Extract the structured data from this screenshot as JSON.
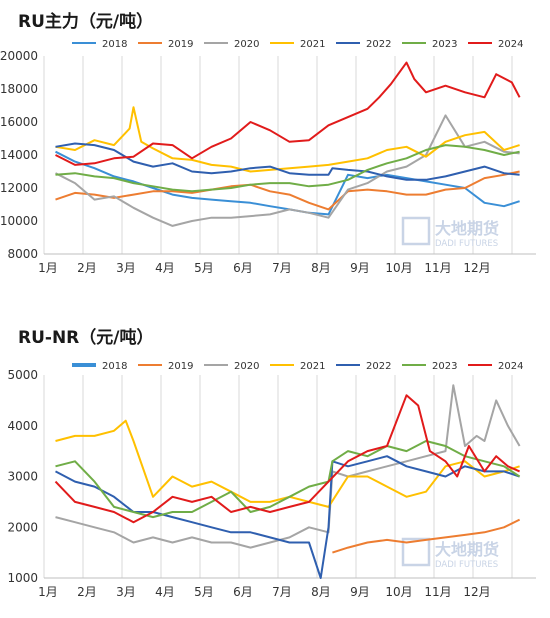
{
  "chart_data": [
    {
      "type": "line",
      "title": "RU主力（元/吨）",
      "ylim": [
        8000,
        20000
      ],
      "yticks": [
        "8000",
        "10000",
        "12000",
        "14000",
        "16000",
        "18000",
        "20000"
      ],
      "xtick_labels": [
        "1月",
        "2月",
        "3月",
        "4月",
        "5月",
        "6月",
        "7月",
        "8月",
        "9月",
        "10月",
        "11月",
        "12月"
      ],
      "legend_position": "top",
      "grid": "vertical",
      "series": [
        {
          "name": "2018",
          "color": "#3a8fd6",
          "x": [
            1,
            1.5,
            2,
            2.5,
            3,
            3.5,
            4,
            4.5,
            5,
            5.5,
            6,
            6.5,
            7,
            7.5,
            8,
            8.5,
            9,
            9.5,
            10,
            10.5,
            11,
            11.5,
            12,
            12.5,
            12.9
          ],
          "y": [
            14200,
            13600,
            13200,
            12700,
            12400,
            12000,
            11600,
            11400,
            11300,
            11200,
            11100,
            10900,
            10700,
            10500,
            10400,
            12800,
            12600,
            12800,
            12600,
            12400,
            12200,
            12000,
            11100,
            10900,
            11200
          ]
        },
        {
          "name": "2019",
          "color": "#ed7d31",
          "x": [
            1,
            1.5,
            2,
            2.5,
            3,
            3.5,
            4,
            4.5,
            5,
            5.5,
            6,
            6.5,
            7,
            7.5,
            8,
            8.5,
            9,
            9.5,
            10,
            10.5,
            11,
            11.5,
            12,
            12.5,
            12.9
          ],
          "y": [
            11300,
            11700,
            11600,
            11400,
            11600,
            11800,
            11800,
            11700,
            11900,
            12100,
            12200,
            11800,
            11600,
            11100,
            10700,
            11800,
            11900,
            11800,
            11600,
            11600,
            11900,
            12000,
            12600,
            12800,
            13000
          ]
        },
        {
          "name": "2020",
          "color": "#a5a5a5",
          "x": [
            1,
            1.5,
            2,
            2.5,
            3,
            3.5,
            4,
            4.5,
            5,
            5.5,
            6,
            6.5,
            7,
            7.5,
            8,
            8.5,
            9,
            9.5,
            10,
            10.5,
            11,
            11.5,
            12,
            12.5,
            12.9
          ],
          "y": [
            12900,
            12300,
            11300,
            11500,
            10800,
            10200,
            9700,
            10000,
            10200,
            10200,
            10300,
            10400,
            10700,
            10500,
            10200,
            11900,
            12300,
            13000,
            13300,
            14000,
            16400,
            14500,
            14800,
            14200,
            14100
          ]
        },
        {
          "name": "2021",
          "color": "#ffc000",
          "x": [
            1,
            1.5,
            2,
            2.5,
            2.9,
            3,
            3.2,
            3.5,
            4,
            4.5,
            5,
            5.5,
            6,
            6.5,
            7,
            7.5,
            8,
            8.5,
            9,
            9.5,
            10,
            10.5,
            11,
            11.5,
            12,
            12.5,
            12.9
          ],
          "y": [
            14500,
            14300,
            14900,
            14600,
            15600,
            16900,
            14800,
            14400,
            13800,
            13700,
            13400,
            13300,
            13000,
            13100,
            13200,
            13300,
            13400,
            13600,
            13800,
            14300,
            14500,
            13900,
            14800,
            15200,
            15400,
            14300,
            14600
          ]
        },
        {
          "name": "2022",
          "color": "#2f5faf",
          "x": [
            1,
            1.5,
            2,
            2.5,
            3,
            3.5,
            4,
            4.5,
            5,
            5.5,
            6,
            6.5,
            7,
            7.5,
            8,
            8.1,
            8.5,
            9,
            9.5,
            10,
            10.5,
            11,
            11.5,
            12,
            12.5,
            12.9
          ],
          "y": [
            14500,
            14700,
            14600,
            14300,
            13600,
            13300,
            13500,
            13000,
            12900,
            13000,
            13200,
            13300,
            12900,
            12800,
            12800,
            13200,
            13100,
            13000,
            12700,
            12500,
            12500,
            12700,
            13000,
            13300,
            12900,
            12800
          ]
        },
        {
          "name": "2023",
          "color": "#70ad47",
          "x": [
            1,
            1.5,
            2,
            2.5,
            3,
            3.5,
            4,
            4.5,
            5,
            5.5,
            6,
            6.5,
            7,
            7.5,
            8,
            8.5,
            9,
            9.5,
            10,
            10.5,
            11,
            11.5,
            12,
            12.5,
            12.9
          ],
          "y": [
            12800,
            12900,
            12700,
            12600,
            12300,
            12100,
            11900,
            11800,
            11900,
            12000,
            12200,
            12300,
            12300,
            12100,
            12200,
            12500,
            13100,
            13500,
            13800,
            14300,
            14600,
            14500,
            14300,
            14000,
            14200
          ]
        },
        {
          "name": "2024",
          "color": "#e11b1b",
          "x": [
            1,
            1.5,
            2,
            2.5,
            3,
            3.5,
            4,
            4.5,
            5,
            5.5,
            6,
            6.5,
            7,
            7.5,
            8,
            8.5,
            9,
            9.3,
            9.6,
            10,
            10.2,
            10.5,
            11,
            11.5,
            12,
            12.3,
            12.7,
            12.9
          ],
          "y": [
            14000,
            13400,
            13500,
            13800,
            13900,
            14700,
            14600,
            13800,
            14500,
            15000,
            16000,
            15500,
            14800,
            14900,
            15800,
            16300,
            16800,
            17500,
            18300,
            19600,
            18600,
            17800,
            18200,
            17800,
            17500,
            18900,
            18400,
            17500
          ]
        }
      ]
    },
    {
      "type": "line",
      "title": "RU-NR（元/吨）",
      "ylim": [
        1000,
        5000
      ],
      "yticks": [
        "1000",
        "2000",
        "3000",
        "4000",
        "5000"
      ],
      "xtick_labels": [
        "1月",
        "2月",
        "3月",
        "4月",
        "5月",
        "6月",
        "7月",
        "8月",
        "9月",
        "10月",
        "11月",
        "12月"
      ],
      "legend_position": "top",
      "grid": "vertical",
      "series": [
        {
          "name": "2018",
          "color": "#3a8fd6",
          "x": [],
          "y": []
        },
        {
          "name": "2019",
          "color": "#ed7d31",
          "x": [
            8.1,
            8.5,
            9,
            9.5,
            10,
            10.5,
            11,
            11.5,
            12,
            12.5,
            12.9
          ],
          "y": [
            1500,
            1600,
            1700,
            1750,
            1700,
            1750,
            1800,
            1850,
            1900,
            2000,
            2150
          ]
        },
        {
          "name": "2020",
          "color": "#a5a5a5",
          "x": [
            1,
            1.5,
            2,
            2.5,
            3,
            3.5,
            4,
            4.5,
            5,
            5.5,
            6,
            6.5,
            7,
            7.5,
            8,
            8.1,
            8.5,
            9,
            9.5,
            10,
            10.5,
            11,
            11.2,
            11.5,
            11.8,
            12,
            12.3,
            12.6,
            12.9
          ],
          "y": [
            2200,
            2100,
            2000,
            1900,
            1700,
            1800,
            1700,
            1800,
            1700,
            1700,
            1600,
            1700,
            1800,
            2000,
            1900,
            3100,
            3000,
            3100,
            3200,
            3300,
            3400,
            3500,
            4800,
            3600,
            3800,
            3700,
            4500,
            4000,
            3600
          ]
        },
        {
          "name": "2021",
          "color": "#ffc000",
          "x": [
            1,
            1.5,
            2,
            2.5,
            2.8,
            3,
            3.5,
            4,
            4.5,
            5,
            5.5,
            6,
            6.5,
            7,
            7.5,
            8,
            8.5,
            9,
            9.5,
            10,
            10.5,
            11,
            11.5,
            12,
            12.5,
            12.9
          ],
          "y": [
            3700,
            3800,
            3800,
            3900,
            4100,
            3700,
            2600,
            3000,
            2800,
            2900,
            2700,
            2500,
            2500,
            2600,
            2500,
            2400,
            3000,
            3000,
            2800,
            2600,
            2700,
            3200,
            3300,
            3000,
            3100,
            3200
          ]
        },
        {
          "name": "2022",
          "color": "#2f5faf",
          "x": [
            1,
            1.5,
            2,
            2.5,
            3,
            3.5,
            4,
            4.5,
            5,
            5.5,
            6,
            6.5,
            7,
            7.5,
            7.8,
            8,
            8.1,
            8.5,
            9,
            9.5,
            10,
            10.5,
            11,
            11.5,
            12,
            12.5,
            12.9
          ],
          "y": [
            3100,
            2900,
            2800,
            2600,
            2300,
            2300,
            2200,
            2100,
            2000,
            1900,
            1900,
            1800,
            1700,
            1700,
            1000,
            2000,
            3300,
            3200,
            3300,
            3400,
            3200,
            3100,
            3000,
            3200,
            3100,
            3100,
            3000
          ]
        },
        {
          "name": "2023",
          "color": "#70ad47",
          "x": [
            1,
            1.5,
            2,
            2.5,
            3,
            3.5,
            4,
            4.5,
            5,
            5.5,
            6,
            6.5,
            7,
            7.5,
            8,
            8.1,
            8.5,
            9,
            9.5,
            10,
            10.5,
            11,
            11.5,
            12,
            12.5,
            12.9
          ],
          "y": [
            3200,
            3300,
            2900,
            2400,
            2300,
            2200,
            2300,
            2300,
            2500,
            2700,
            2300,
            2400,
            2600,
            2800,
            2900,
            3300,
            3500,
            3400,
            3600,
            3500,
            3700,
            3600,
            3400,
            3300,
            3200,
            3000
          ]
        },
        {
          "name": "2024",
          "color": "#e11b1b",
          "x": [
            1,
            1.5,
            2,
            2.5,
            3,
            3.5,
            4,
            4.5,
            5,
            5.5,
            6,
            6.5,
            7,
            7.5,
            8,
            8.5,
            9,
            9.5,
            10,
            10.3,
            10.6,
            11,
            11.3,
            11.6,
            12,
            12.3,
            12.6,
            12.9
          ],
          "y": [
            2900,
            2500,
            2400,
            2300,
            2100,
            2300,
            2600,
            2500,
            2600,
            2300,
            2400,
            2300,
            2400,
            2500,
            2900,
            3300,
            3500,
            3600,
            4600,
            4400,
            3500,
            3300,
            3000,
            3600,
            3100,
            3400,
            3200,
            3100
          ]
        }
      ]
    }
  ],
  "watermark": {
    "cn": "大地期货",
    "en": "DADI FUTURES"
  },
  "panels": {
    "top_title": "RU主力（元/吨）",
    "bottom_title": "RU-NR（元/吨）"
  }
}
